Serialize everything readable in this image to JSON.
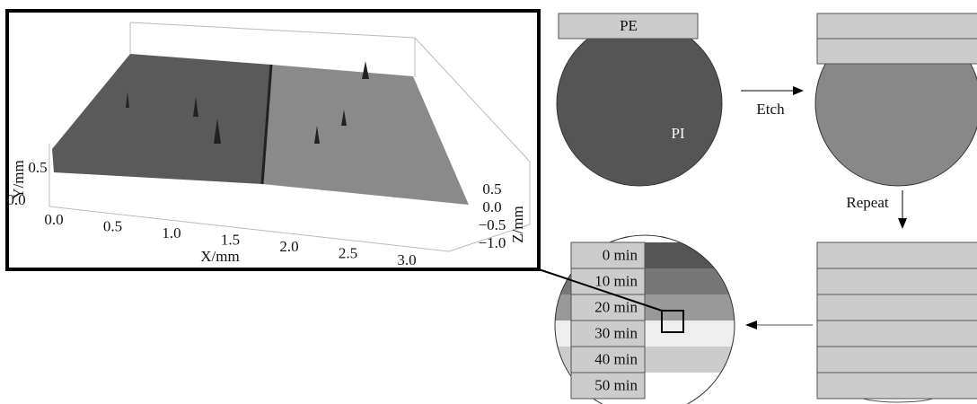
{
  "surface_plot": {
    "x_axis_label": "X/mm",
    "y_axis_label": "Y/mm",
    "z_axis_label": "Z/mm",
    "x_ticks": [
      "0.0",
      "0.5",
      "1.0",
      "1.5",
      "2.0",
      "2.5",
      "3.0"
    ],
    "y_ticks": [
      "0.0",
      "0.5"
    ],
    "z_ticks": [
      "0.5",
      "0.0",
      "−0.5",
      "−1.0"
    ]
  },
  "schematic": {
    "pe_label": "PE",
    "pi_label": "PI",
    "etch_label": "Etch",
    "repeat_label": "Repeat",
    "time_labels": [
      "0 min",
      "10 min",
      "20 min",
      "30 min",
      "40 min",
      "50 min"
    ]
  }
}
